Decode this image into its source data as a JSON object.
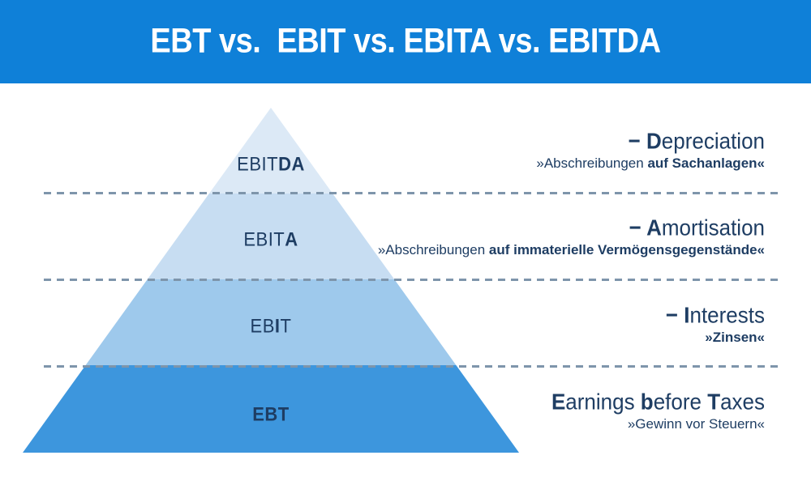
{
  "header": {
    "title": "EBT vs.  EBIT vs. EBITA vs. EBITDA"
  },
  "colors": {
    "background": "#ffffff",
    "banner_bg": "#0f80d8",
    "banner_text": "#ffffff",
    "layer_ebitda": "#dce9f6",
    "layer_ebita": "#c7ddf2",
    "layer_ebit": "#9ec9ec",
    "layer_ebt": "#3d96dd",
    "text_navy": "#1e3d63",
    "dash": "#7e95ab"
  },
  "pyramid": {
    "layers": [
      {
        "id": "EBITDA",
        "label_segments": [
          {
            "text": "EBIT",
            "bold": false
          },
          {
            "text": "DA",
            "bold": true
          }
        ]
      },
      {
        "id": "EBITA",
        "label_segments": [
          {
            "text": "EBIT",
            "bold": false
          },
          {
            "text": "A",
            "bold": true
          }
        ]
      },
      {
        "id": "EBIT",
        "label_segments": [
          {
            "text": "EB",
            "bold": false
          },
          {
            "text": "I",
            "bold": true
          },
          {
            "text": "T",
            "bold": false
          }
        ]
      },
      {
        "id": "EBT",
        "label_segments": [
          {
            "text": "EBT",
            "bold": true
          }
        ]
      }
    ]
  },
  "annotations": [
    {
      "id": "depreciation",
      "title_segments": [
        {
          "text": "− D",
          "bold": true
        },
        {
          "text": "epreciation",
          "bold": false
        }
      ],
      "subtitle_segments": [
        {
          "text": "»Abschreibungen ",
          "bold": false
        },
        {
          "text": "auf Sachanlagen«",
          "bold": true
        }
      ]
    },
    {
      "id": "amortisation",
      "title_segments": [
        {
          "text": "− A",
          "bold": true
        },
        {
          "text": "mortisation",
          "bold": false
        }
      ],
      "subtitle_segments": [
        {
          "text": "»Abschreibungen ",
          "bold": false
        },
        {
          "text": "auf immaterielle Vermögensgegenstände«",
          "bold": true
        }
      ]
    },
    {
      "id": "interests",
      "title_segments": [
        {
          "text": "− I",
          "bold": true
        },
        {
          "text": "nterests",
          "bold": false
        }
      ],
      "subtitle_segments": [
        {
          "text": "»Zinsen«",
          "bold": true
        }
      ]
    },
    {
      "id": "earnings-before-taxes",
      "title_segments": [
        {
          "text": "E",
          "bold": true
        },
        {
          "text": "arnings ",
          "bold": false
        },
        {
          "text": "b",
          "bold": true
        },
        {
          "text": "efore ",
          "bold": false
        },
        {
          "text": "T",
          "bold": true
        },
        {
          "text": "axes",
          "bold": false
        }
      ],
      "subtitle_segments": [
        {
          "text": "»Gewinn vor Steuern«",
          "bold": false
        }
      ]
    }
  ]
}
